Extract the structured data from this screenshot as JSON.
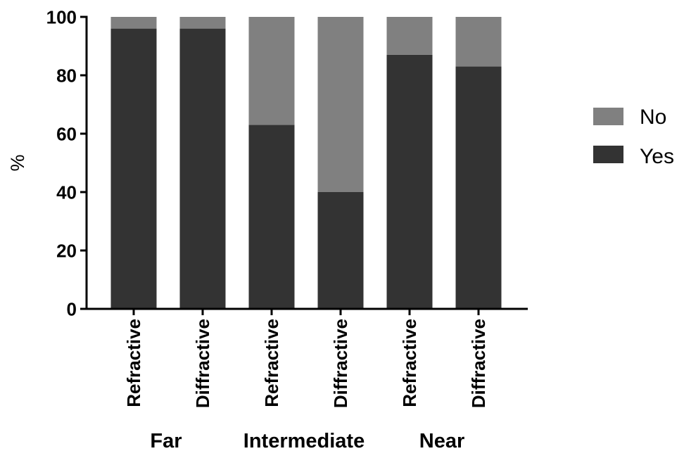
{
  "chart_data": {
    "type": "bar",
    "stacked": true,
    "categories": [
      "Refractive",
      "Diffractive",
      "Refractive",
      "Diffractive",
      "Refractive",
      "Diffractive"
    ],
    "groups": [
      {
        "label": "Far",
        "categories": [
          0,
          1
        ]
      },
      {
        "label": "Intermediate",
        "categories": [
          2,
          3
        ]
      },
      {
        "label": "Near",
        "categories": [
          4,
          5
        ]
      }
    ],
    "series": [
      {
        "name": "Yes",
        "color": "#333333",
        "values": [
          96,
          96,
          63,
          40,
          87,
          83
        ]
      },
      {
        "name": "No",
        "color": "#808080",
        "values": [
          4,
          4,
          37,
          60,
          13,
          17
        ]
      }
    ],
    "legend": {
      "placement": "right",
      "order": [
        "No",
        "Yes"
      ]
    },
    "title": "",
    "xlabel": "",
    "ylabel": "%",
    "ylim": [
      0,
      100
    ],
    "yticks": [
      "0",
      "20",
      "40",
      "60",
      "80",
      "100"
    ],
    "grid": false
  }
}
